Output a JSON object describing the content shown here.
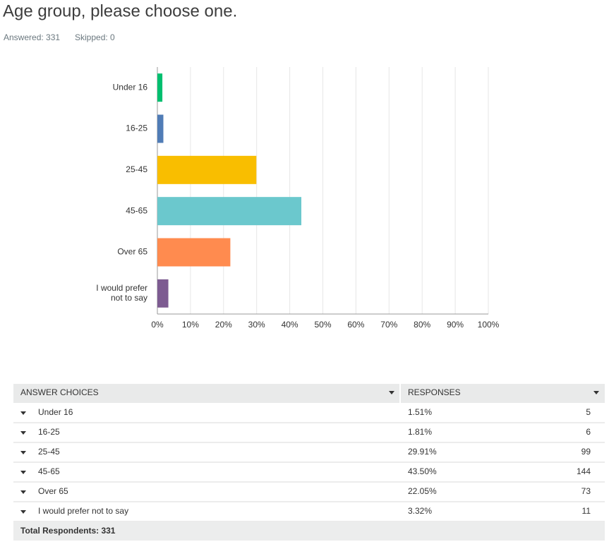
{
  "header": {
    "title": "Age group, please choose one.",
    "answered": "Answered: 331",
    "skipped": "Skipped: 0"
  },
  "chart_data": {
    "type": "hbar",
    "categories": [
      "Under 16",
      "16-25",
      "25-45",
      "45-65",
      "Over 65",
      "I would prefer not to say"
    ],
    "values": [
      1.51,
      1.81,
      29.91,
      43.5,
      22.05,
      3.32
    ],
    "colors": [
      "#00bf6f",
      "#507cb6",
      "#f9be00",
      "#6bc8cd",
      "#ff8b4f",
      "#7d5b91"
    ],
    "xlim": [
      0,
      100
    ],
    "xticks": [
      {
        "value": 0,
        "label": "0%"
      },
      {
        "value": 10,
        "label": "10%"
      },
      {
        "value": 20,
        "label": "20%"
      },
      {
        "value": 30,
        "label": "30%"
      },
      {
        "value": 40,
        "label": "40%"
      },
      {
        "value": 50,
        "label": "50%"
      },
      {
        "value": 60,
        "label": "60%"
      },
      {
        "value": 70,
        "label": "70%"
      },
      {
        "value": 80,
        "label": "80%"
      },
      {
        "value": 90,
        "label": "90%"
      },
      {
        "value": 100,
        "label": "100%"
      }
    ],
    "grid": true
  },
  "table": {
    "headers": [
      "ANSWER CHOICES",
      "RESPONSES"
    ],
    "rows": [
      [
        "Under 16",
        "1.51%",
        5
      ],
      [
        "16-25",
        "1.81%",
        6
      ],
      [
        "25-45",
        "29.91%",
        99
      ],
      [
        "45-65",
        "43.50%",
        144
      ],
      [
        "Over 65",
        "22.05%",
        73
      ],
      [
        "I would prefer not to say",
        "3.32%",
        11
      ]
    ],
    "footer": "Total Respondents: 331"
  }
}
